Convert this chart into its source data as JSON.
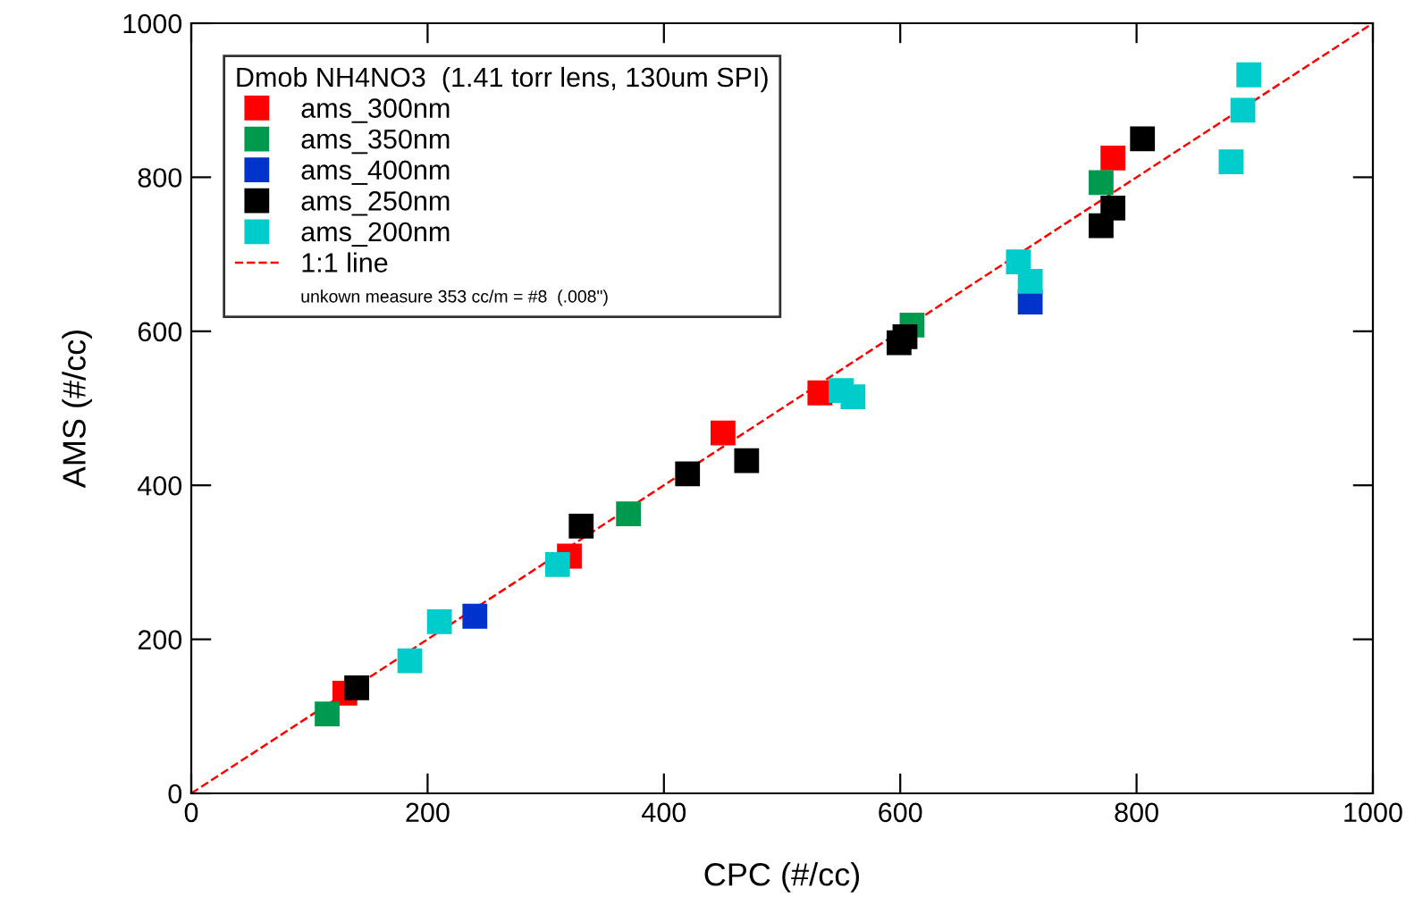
{
  "chart_data": {
    "type": "scatter",
    "xlabel": "CPC (#/cc)",
    "ylabel": "AMS (#/cc)",
    "legend_title": "Dmob NH4NO3  (1.41 torr lens, 130um SPI)",
    "legend": "top left",
    "grid": false,
    "marker": "square",
    "xlim": [
      0,
      1000
    ],
    "ylim": [
      0,
      1000
    ],
    "xticks": [
      0,
      200,
      400,
      600,
      800,
      1000
    ],
    "yticks": [
      0,
      200,
      400,
      600,
      800,
      1000
    ],
    "annotations": [
      "unkown measure 353 cc/m = #8  (.008\")"
    ],
    "series": [
      {
        "name": "ams_300nm",
        "color": "#ff0000",
        "x": [
          130,
          320,
          450,
          532,
          780
        ],
        "values": [
          130,
          308,
          468,
          520,
          825
        ]
      },
      {
        "name": "ams_350nm",
        "color": "#009a4e",
        "x": [
          115,
          370,
          610,
          770
        ],
        "values": [
          103,
          363,
          608,
          793
        ]
      },
      {
        "name": "ams_400nm",
        "color": "#0033cc",
        "x": [
          240,
          710
        ],
        "values": [
          230,
          638
        ]
      },
      {
        "name": "ams_250nm",
        "color": "#000000",
        "x": [
          140,
          330,
          420,
          470,
          599,
          604,
          770,
          780,
          805
        ],
        "values": [
          137,
          347,
          415,
          432,
          585,
          593,
          737,
          760,
          850
        ]
      },
      {
        "name": "ams_200nm",
        "color": "#00cccc",
        "x": [
          185,
          210,
          310,
          550,
          560,
          700,
          710,
          880,
          890,
          895
        ],
        "values": [
          172,
          223,
          297,
          523,
          515,
          690,
          665,
          820,
          887,
          933
        ]
      },
      {
        "name": "1:1 line",
        "color": "#ff0000",
        "type": "line",
        "line_style": "dashed",
        "marker": "none",
        "x": [
          0,
          1000
        ],
        "values": [
          0,
          1000
        ]
      }
    ]
  }
}
